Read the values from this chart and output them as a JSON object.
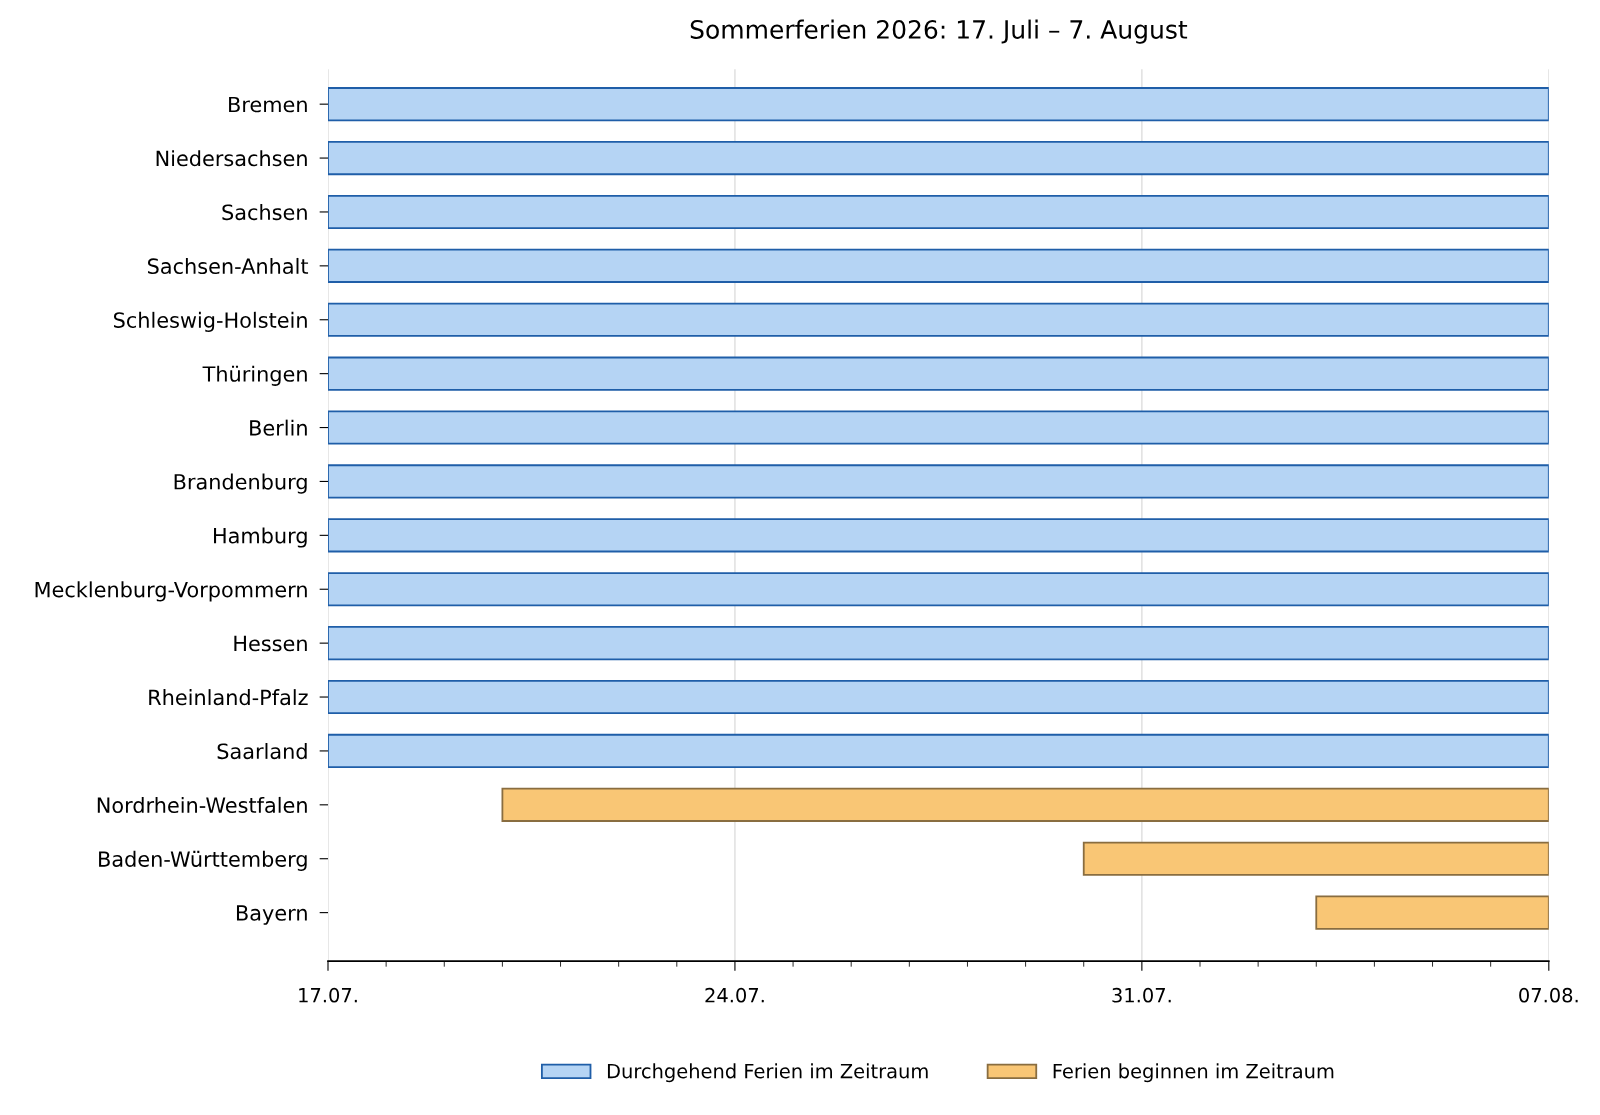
{
  "chart_data": {
    "type": "bar",
    "orientation": "horizontal",
    "title": "Sommerferien 2026: 17. Juli – 7. August",
    "categories": [
      "Bremen",
      "Niedersachsen",
      "Sachsen",
      "Sachsen-Anhalt",
      "Schleswig-Holstein",
      "Thüringen",
      "Berlin",
      "Brandenburg",
      "Hamburg",
      "Mecklenburg-Vorpommern",
      "Hessen",
      "Rheinland-Pfalz",
      "Saarland",
      "Nordrhein-Westfalen",
      "Baden-Württemberg",
      "Bayern"
    ],
    "series": [
      {
        "name": "Durchgehend Ferien im Zeitraum",
        "color": "#b5d4f4",
        "base": [
          20651,
          20651,
          20651,
          20651,
          20651,
          20651,
          20651,
          20651,
          20651,
          20651,
          20651,
          20651,
          20651,
          null,
          null,
          null
        ],
        "values": [
          21,
          21,
          21,
          21,
          21,
          21,
          21,
          21,
          21,
          21,
          21,
          21,
          21,
          null,
          null,
          null
        ]
      },
      {
        "name": "Ferien beginnen im Zeitraum",
        "color": "#f9c675",
        "base": [
          null,
          null,
          null,
          null,
          null,
          null,
          null,
          null,
          null,
          null,
          null,
          null,
          null,
          20654,
          20664,
          20668
        ],
        "values": [
          null,
          null,
          null,
          null,
          null,
          null,
          null,
          null,
          null,
          null,
          null,
          null,
          null,
          18,
          8,
          4
        ]
      }
    ],
    "xlim": [
      "2026-07-17",
      "2026-08-07"
    ],
    "xticks": [
      {
        "value": "2026-07-17",
        "label": "17.07."
      },
      {
        "value": "2026-07-18",
        "label": null
      },
      {
        "value": "2026-07-19",
        "label": null
      },
      {
        "value": "2026-07-20",
        "label": null
      },
      {
        "value": "2026-07-21",
        "label": null
      },
      {
        "value": "2026-07-22",
        "label": null
      },
      {
        "value": "2026-07-23",
        "label": null
      },
      {
        "value": "2026-07-24",
        "label": "24.07."
      },
      {
        "value": "2026-07-25",
        "label": null
      },
      {
        "value": "2026-07-26",
        "label": null
      },
      {
        "value": "2026-07-27",
        "label": null
      },
      {
        "value": "2026-07-28",
        "label": null
      },
      {
        "value": "2026-07-29",
        "label": null
      },
      {
        "value": "2026-07-30",
        "label": null
      },
      {
        "value": "2026-07-31",
        "label": "31.07."
      },
      {
        "value": "2026-08-01",
        "label": null
      },
      {
        "value": "2026-08-02",
        "label": null
      },
      {
        "value": "2026-08-03",
        "label": null
      },
      {
        "value": "2026-08-04",
        "label": null
      },
      {
        "value": "2026-08-05",
        "label": null
      },
      {
        "value": "2026-08-06",
        "label": null
      },
      {
        "value": "2026-08-07",
        "label": "07.08."
      }
    ],
    "grid": "x",
    "legend": "bottom"
  }
}
